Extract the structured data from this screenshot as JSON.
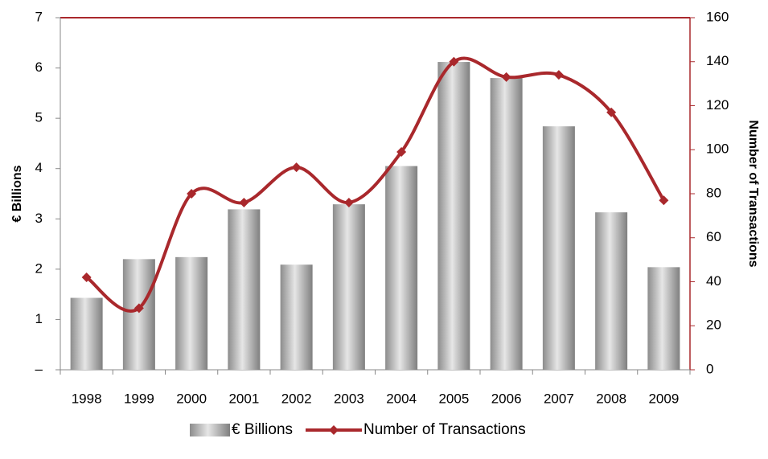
{
  "chart_data": {
    "type": "bar_line",
    "categories": [
      "1998",
      "1999",
      "2000",
      "2001",
      "2002",
      "2003",
      "2004",
      "2005",
      "2006",
      "2007",
      "2008",
      "2009"
    ],
    "series": [
      {
        "name": "€ Billions",
        "type": "bar",
        "color": "#a6a6a6",
        "values": [
          1.43,
          2.2,
          2.24,
          3.19,
          2.09,
          3.29,
          4.05,
          6.12,
          5.8,
          4.84,
          3.13,
          2.04
        ]
      },
      {
        "name": "Number of Transactions",
        "type": "line",
        "axis": "y2",
        "color": "#a9282c",
        "values": [
          42,
          28,
          80,
          76,
          92,
          76,
          99,
          140,
          133,
          134,
          117,
          77
        ]
      }
    ],
    "ylabel": "€ Billions",
    "y2label": "Number of Transactions",
    "ylim": [
      0,
      7
    ],
    "yticks": [
      {
        "value": 0,
        "label": "–"
      },
      1,
      2,
      3,
      4,
      5,
      6,
      7
    ],
    "y2lim": [
      0,
      160
    ],
    "y2ticks": [
      0,
      20,
      40,
      60,
      80,
      100,
      120,
      140,
      160
    ],
    "legend": "bottom"
  }
}
